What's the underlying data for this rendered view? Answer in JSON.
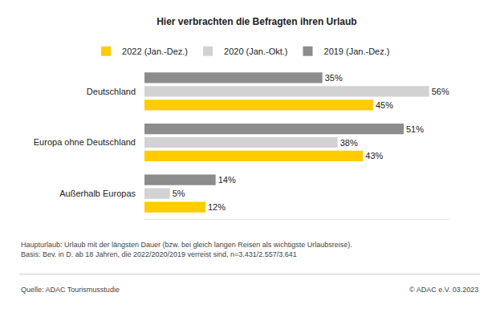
{
  "chart_data": {
    "type": "bar",
    "orientation": "horizontal",
    "title": "Hier verbrachten die Befragten ihren Urlaub",
    "categories": [
      "Deutschland",
      "Europa ohne Deutschland",
      "Außerhalb Europas"
    ],
    "series": [
      {
        "name": "2022 (Jan.-Dez.)",
        "color": "#ffcc00",
        "values": [
          45,
          43,
          12
        ],
        "value_labels": [
          "45%",
          "43%",
          "12%"
        ]
      },
      {
        "name": "2020 (Jan.-Okt.)",
        "color": "#d2d2d2",
        "values": [
          56,
          38,
          5
        ],
        "value_labels": [
          "56%",
          "38%",
          "5%"
        ]
      },
      {
        "name": "2019 (Jan.-Dez.)",
        "color": "#8c8c8c",
        "values": [
          35,
          51,
          14
        ],
        "value_labels": [
          "35%",
          "51%",
          "14%"
        ]
      }
    ],
    "xlim": [
      0,
      60
    ],
    "data_labels": true,
    "tick_labels": "y",
    "grid": false,
    "legend": "top",
    "notes": [
      "Haupturlaub: Urlaub mit der längsten Dauer (bzw. bei gleich langen Reisen als wichtigste Urlaubsreise).",
      "Basis: Bev. in D. ab 18 Jahren, die 2022/2020/2019 verreist sind, n=3.431/2.557/3.641"
    ],
    "source": "Quelle: ADAC Tourismusstudie",
    "copyright": "© ADAC e.V. 03.2023"
  }
}
